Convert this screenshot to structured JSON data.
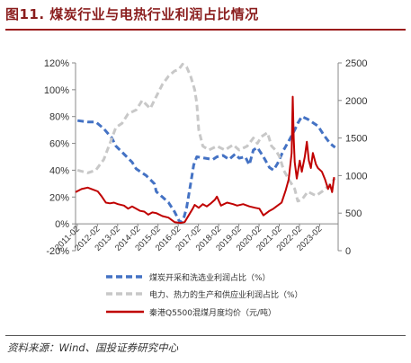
{
  "title": "图11. 煤炭行业与电热行业利润占比情况",
  "source": "资料来源：Wind、国投证券研究中心",
  "chart_data": {
    "type": "line",
    "left_axis": {
      "ticks": [
        "-20%",
        "0%",
        "20%",
        "40%",
        "60%",
        "80%",
        "100%",
        "120%"
      ],
      "ylim": [
        -20,
        120
      ]
    },
    "right_axis": {
      "ticks": [
        "0",
        "500",
        "1000",
        "1500",
        "2000",
        "2500"
      ],
      "ylim": [
        0,
        2500
      ]
    },
    "x_labels": [
      "2011-02",
      "2012-02",
      "2013-02",
      "2014-02",
      "2015-02",
      "2016-02",
      "2017-02",
      "2018-02",
      "2019-02",
      "2020-02",
      "2021-02",
      "2022-02",
      "2023-02"
    ],
    "x_range": [
      2011.0,
      2024.0
    ],
    "grid": false,
    "legend_position": "bottom",
    "series": [
      {
        "name": "煤炭开采和洗选业利润占比（%）",
        "axis": "left",
        "color": "#4472c4",
        "dash": "dashed",
        "width": 3,
        "points": [
          [
            2011.1,
            77
          ],
          [
            2011.6,
            76
          ],
          [
            2012.0,
            76
          ],
          [
            2012.4,
            71
          ],
          [
            2012.8,
            64
          ],
          [
            2013.0,
            58
          ],
          [
            2013.4,
            52
          ],
          [
            2013.8,
            46
          ],
          [
            2014.0,
            41
          ],
          [
            2014.5,
            36
          ],
          [
            2014.9,
            30
          ],
          [
            2015.0,
            24
          ],
          [
            2015.3,
            20
          ],
          [
            2015.6,
            16
          ],
          [
            2015.9,
            9
          ],
          [
            2016.1,
            3
          ],
          [
            2016.2,
            1
          ],
          [
            2016.35,
            4
          ],
          [
            2016.5,
            12
          ],
          [
            2016.7,
            30
          ],
          [
            2016.85,
            44
          ],
          [
            2017.0,
            50
          ],
          [
            2017.4,
            49
          ],
          [
            2017.8,
            48
          ],
          [
            2018.0,
            50
          ],
          [
            2018.3,
            51
          ],
          [
            2018.6,
            48
          ],
          [
            2018.9,
            52
          ],
          [
            2019.1,
            49
          ],
          [
            2019.4,
            50
          ],
          [
            2019.6,
            44
          ],
          [
            2019.8,
            55
          ],
          [
            2020.0,
            57
          ],
          [
            2020.3,
            50
          ],
          [
            2020.6,
            42
          ],
          [
            2020.8,
            40
          ],
          [
            2021.0,
            45
          ],
          [
            2021.3,
            55
          ],
          [
            2021.6,
            63
          ],
          [
            2021.85,
            70
          ],
          [
            2022.0,
            75
          ],
          [
            2022.2,
            80
          ],
          [
            2022.5,
            78
          ],
          [
            2022.8,
            75
          ],
          [
            2023.0,
            73
          ],
          [
            2023.3,
            66
          ],
          [
            2023.6,
            60
          ],
          [
            2023.85,
            57
          ]
        ]
      },
      {
        "name": "电力、热力的生产和供应业利润占比（%）",
        "axis": "left",
        "color": "#c8c8c8",
        "dash": "dashed",
        "width": 3,
        "points": [
          [
            2011.1,
            40
          ],
          [
            2011.6,
            38
          ],
          [
            2012.0,
            40
          ],
          [
            2012.4,
            48
          ],
          [
            2012.7,
            60
          ],
          [
            2013.0,
            72
          ],
          [
            2013.3,
            75
          ],
          [
            2013.6,
            82
          ],
          [
            2014.0,
            85
          ],
          [
            2014.3,
            92
          ],
          [
            2014.7,
            86
          ],
          [
            2015.0,
            95
          ],
          [
            2015.3,
            104
          ],
          [
            2015.6,
            110
          ],
          [
            2015.9,
            114
          ],
          [
            2016.1,
            115
          ],
          [
            2016.3,
            119
          ],
          [
            2016.5,
            117
          ],
          [
            2016.7,
            110
          ],
          [
            2016.9,
            100
          ],
          [
            2017.0,
            90
          ],
          [
            2017.1,
            70
          ],
          [
            2017.3,
            58
          ],
          [
            2017.6,
            55
          ],
          [
            2018.0,
            58
          ],
          [
            2018.4,
            55
          ],
          [
            2018.8,
            59
          ],
          [
            2019.1,
            55
          ],
          [
            2019.5,
            58
          ],
          [
            2019.8,
            64
          ],
          [
            2020.0,
            60
          ],
          [
            2020.2,
            65
          ],
          [
            2020.5,
            68
          ],
          [
            2020.7,
            58
          ],
          [
            2020.9,
            55
          ],
          [
            2021.1,
            50
          ],
          [
            2021.3,
            40
          ],
          [
            2021.6,
            32
          ],
          [
            2021.85,
            26
          ],
          [
            2022.0,
            17
          ],
          [
            2022.2,
            18
          ],
          [
            2022.5,
            24
          ],
          [
            2022.9,
            21
          ],
          [
            2023.2,
            24
          ],
          [
            2023.5,
            28
          ],
          [
            2023.85,
            34
          ]
        ]
      },
      {
        "name": "秦港Q5500混煤月度均价（元/吨）",
        "axis": "right",
        "color": "#c00000",
        "dash": "solid",
        "width": 2,
        "points": [
          [
            2011.0,
            780
          ],
          [
            2011.3,
            820
          ],
          [
            2011.6,
            840
          ],
          [
            2011.9,
            810
          ],
          [
            2012.1,
            790
          ],
          [
            2012.3,
            720
          ],
          [
            2012.5,
            640
          ],
          [
            2012.7,
            630
          ],
          [
            2012.9,
            640
          ],
          [
            2013.1,
            620
          ],
          [
            2013.4,
            600
          ],
          [
            2013.6,
            560
          ],
          [
            2013.8,
            590
          ],
          [
            2014.0,
            560
          ],
          [
            2014.2,
            530
          ],
          [
            2014.4,
            520
          ],
          [
            2014.6,
            480
          ],
          [
            2014.8,
            510
          ],
          [
            2015.0,
            500
          ],
          [
            2015.3,
            460
          ],
          [
            2015.6,
            440
          ],
          [
            2015.9,
            380
          ],
          [
            2016.2,
            370
          ],
          [
            2016.4,
            380
          ],
          [
            2016.6,
            470
          ],
          [
            2016.8,
            560
          ],
          [
            2016.9,
            610
          ],
          [
            2017.1,
            570
          ],
          [
            2017.3,
            620
          ],
          [
            2017.5,
            590
          ],
          [
            2017.7,
            630
          ],
          [
            2017.9,
            680
          ],
          [
            2018.0,
            720
          ],
          [
            2018.2,
            600
          ],
          [
            2018.5,
            640
          ],
          [
            2018.8,
            620
          ],
          [
            2019.0,
            600
          ],
          [
            2019.3,
            620
          ],
          [
            2019.6,
            590
          ],
          [
            2019.9,
            570
          ],
          [
            2020.1,
            560
          ],
          [
            2020.3,
            470
          ],
          [
            2020.6,
            530
          ],
          [
            2020.8,
            560
          ],
          [
            2021.0,
            600
          ],
          [
            2021.2,
            640
          ],
          [
            2021.4,
            800
          ],
          [
            2021.55,
            950
          ],
          [
            2021.7,
            1300
          ],
          [
            2021.75,
            2050
          ],
          [
            2021.8,
            1500
          ],
          [
            2021.85,
            1180
          ],
          [
            2021.95,
            960
          ],
          [
            2022.1,
            1200
          ],
          [
            2022.2,
            1050
          ],
          [
            2022.35,
            1250
          ],
          [
            2022.45,
            1450
          ],
          [
            2022.55,
            1200
          ],
          [
            2022.65,
            1100
          ],
          [
            2022.75,
            1300
          ],
          [
            2022.9,
            1150
          ],
          [
            2023.0,
            1100
          ],
          [
            2023.2,
            1050
          ],
          [
            2023.35,
            950
          ],
          [
            2023.5,
            820
          ],
          [
            2023.6,
            880
          ],
          [
            2023.7,
            780
          ],
          [
            2023.8,
            980
          ]
        ]
      }
    ]
  }
}
